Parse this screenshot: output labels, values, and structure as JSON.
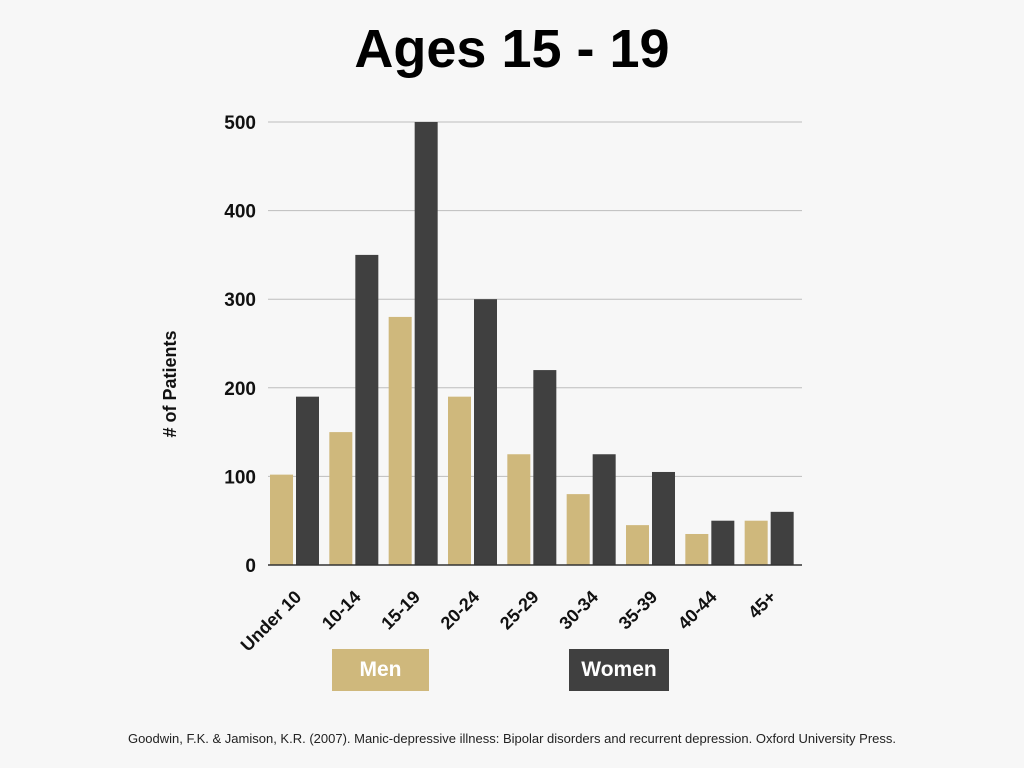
{
  "chart_data": {
    "type": "bar",
    "title": "Ages 15 - 19",
    "ylabel": "# of Patients",
    "xlabel": "",
    "categories": [
      "Under 10",
      "10-14",
      "15-19",
      "20-24",
      "25-29",
      "30-34",
      "35-39",
      "40-44",
      "45+"
    ],
    "series": [
      {
        "name": "Men",
        "color": "#cfb87c",
        "values": [
          102,
          150,
          280,
          190,
          125,
          80,
          45,
          35,
          50
        ]
      },
      {
        "name": "Women",
        "color": "#404040",
        "values": [
          190,
          350,
          500,
          300,
          220,
          125,
          105,
          50,
          60
        ]
      }
    ],
    "ylim": [
      0,
      500
    ],
    "yticks": [
      0,
      100,
      200,
      300,
      400,
      500
    ],
    "grid": true,
    "legend_position": "bottom"
  },
  "source": "Goodwin, F.K. & Jamison, K.R. (2007). Manic-depressive illness: Bipolar disorders and recurrent depression. Oxford University Press."
}
